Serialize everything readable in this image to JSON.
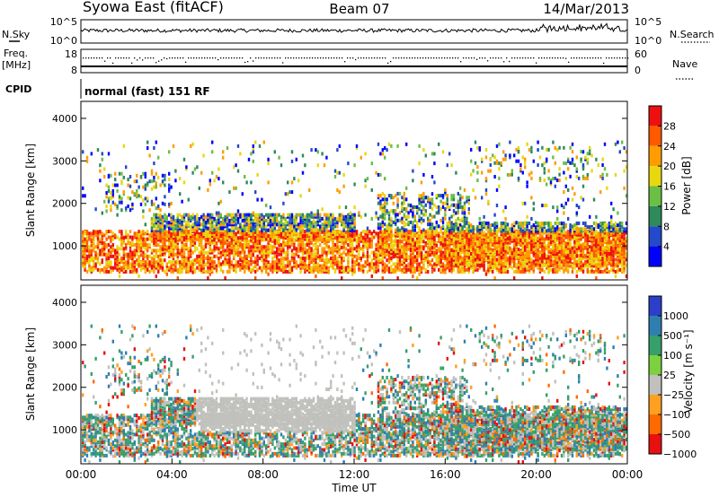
{
  "header": {
    "station": "Syowa East (fitACF)",
    "beam": "Beam 07",
    "date": "14/Mar/2013"
  },
  "sky_panel": {
    "left_label": "N.Sky",
    "right_label": "N.Search",
    "left_ticks": [
      "10^5",
      "10^0"
    ],
    "right_ticks": [
      "10^5",
      "10^0"
    ]
  },
  "freq_panel": {
    "left_label_line1": "Freq.",
    "left_label_line2": "[MHz]",
    "left_ticks": [
      "18",
      "8"
    ],
    "right_label": "Nave",
    "right_ticks": [
      "60",
      "0"
    ]
  },
  "cpid_panel": {
    "label": "CPID",
    "text": "normal (fast) 151 RF"
  },
  "colors": {
    "power_scale": [
      "#0000ff",
      "#2449c9",
      "#2d8a5a",
      "#6abf44",
      "#e8d80f",
      "#ff9d00",
      "#ff5a00",
      "#ee1010"
    ],
    "velocity_scale": [
      "#2b3fc8",
      "#2e7fb0",
      "#36a06a",
      "#7dd040",
      "#c0c0bd",
      "#ffa020",
      "#ff6a00",
      "#e81010"
    ]
  },
  "chart_data": [
    {
      "type": "heatmap",
      "title": "",
      "xlabel": "",
      "ylabel": "Slant Range [km]",
      "xlim": [
        "00:00",
        "00:00"
      ],
      "ylim": [
        200,
        4400
      ],
      "y_ticks": [
        "1000",
        "2000",
        "3000",
        "4000"
      ],
      "colorbar_label": "Power [dB]",
      "colorbar_ticks": [
        "4",
        "8",
        "12",
        "16",
        "20",
        "24",
        "28"
      ],
      "colorbar_range": [
        0,
        32
      ]
    },
    {
      "type": "heatmap",
      "title": "",
      "xlabel": "Time UT",
      "ylabel": "Slant Range [km]",
      "x_ticks": [
        "00:00",
        "04:00",
        "08:00",
        "12:00",
        "16:00",
        "20:00",
        "00:00"
      ],
      "ylim": [
        200,
        4400
      ],
      "y_ticks": [
        "1000",
        "2000",
        "3000",
        "4000"
      ],
      "colorbar_label": "Velocity [m s⁻¹]",
      "colorbar_ticks": [
        "1000",
        "500",
        "100",
        "25",
        "−25",
        "−100",
        "−500",
        "−1000"
      ]
    }
  ]
}
